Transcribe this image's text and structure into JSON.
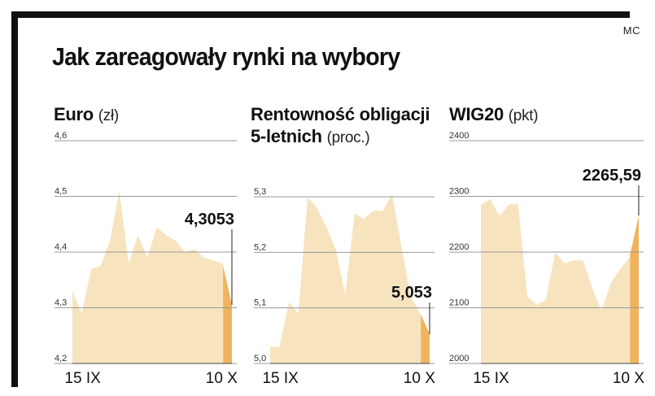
{
  "title": "Jak zareagowały rynki na wybory",
  "source": "MC",
  "colors": {
    "area": "#f7e4bf",
    "highlight": "#f0b45e",
    "gridline": "#999999",
    "frame": "#111111"
  },
  "chart_data": [
    {
      "type": "area",
      "title": "Euro",
      "unit": "(zł)",
      "ylim": [
        4.2,
        4.6
      ],
      "yticks": [
        "4,2",
        "4,3",
        "4,4",
        "4,5",
        "4,6"
      ],
      "ytick_values": [
        4.2,
        4.3,
        4.4,
        4.5,
        4.6
      ],
      "xtick_labels": [
        "15 IX",
        "10 X"
      ],
      "xtick_index": [
        2,
        29
      ],
      "values": [
        4.33,
        4.29,
        4.37,
        4.375,
        4.42,
        4.51,
        4.38,
        4.43,
        4.39,
        4.445,
        4.43,
        4.42,
        4.4,
        4.405,
        4.39,
        4.385,
        4.38,
        4.3053
      ],
      "last_label": "4,3053"
    },
    {
      "type": "area",
      "title": "Rentowność obligacji 5-letnich",
      "unit": "(proc.)",
      "ylim": [
        5.0,
        5.3
      ],
      "yticks": [
        "5,0",
        "5,1",
        "5,2",
        "5,3"
      ],
      "ytick_values": [
        5.0,
        5.1,
        5.2,
        5.3
      ],
      "xtick_labels": [
        "15 IX",
        "10 X"
      ],
      "xtick_index": [
        2,
        29
      ],
      "values": [
        5.03,
        5.03,
        5.11,
        5.09,
        5.3,
        5.28,
        5.245,
        5.205,
        5.125,
        5.27,
        5.26,
        5.275,
        5.275,
        5.305,
        5.21,
        5.12,
        5.09,
        5.053
      ],
      "last_label": "5,053"
    },
    {
      "type": "area",
      "title": "WIG20",
      "unit": "(pkt)",
      "ylim": [
        2000,
        2400
      ],
      "yticks": [
        "2000",
        "2100",
        "2200",
        "2300",
        "2400"
      ],
      "ytick_values": [
        2000,
        2100,
        2200,
        2300,
        2400
      ],
      "xtick_labels": [
        "15 IX",
        "10 X"
      ],
      "xtick_index": [
        2,
        29
      ],
      "values": [
        2285,
        2295,
        2265,
        2285,
        2287,
        2120,
        2105,
        2115,
        2200,
        2180,
        2185,
        2185,
        2135,
        2095,
        2145,
        2170,
        2190,
        2265.59
      ],
      "last_label": "2265,59"
    }
  ]
}
